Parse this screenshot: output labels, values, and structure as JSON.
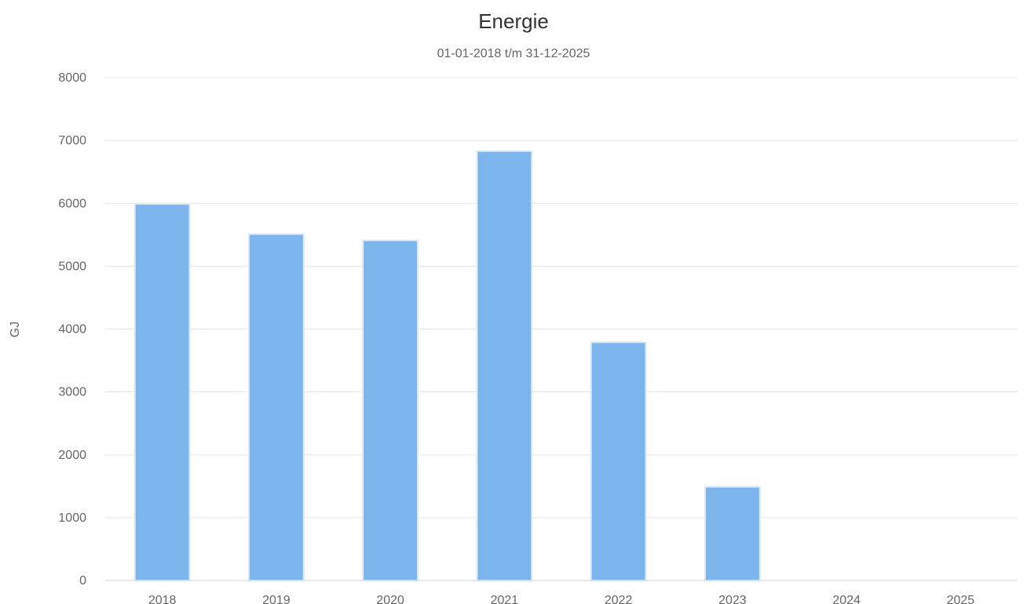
{
  "chart_data": {
    "type": "bar",
    "title": "Energie",
    "subtitle": "01-01-2018 t/m 31-12-2025",
    "xlabel": "",
    "ylabel": "GJ",
    "categories": [
      "2018",
      "2019",
      "2020",
      "2021",
      "2022",
      "2023",
      "2024",
      "2025"
    ],
    "values": [
      5990,
      5510,
      5410,
      6830,
      3790,
      1490,
      0,
      0
    ],
    "ylim": [
      0,
      8000
    ],
    "yticks": [
      0,
      1000,
      2000,
      3000,
      4000,
      5000,
      6000,
      7000,
      8000
    ],
    "grid": true,
    "legend": "none",
    "colors": {
      "bar_fill": "#7cb5ec",
      "bar_stroke": "#d9e8f8",
      "grid": "#e6e6e6",
      "axis_line": "#ccd6eb"
    }
  }
}
